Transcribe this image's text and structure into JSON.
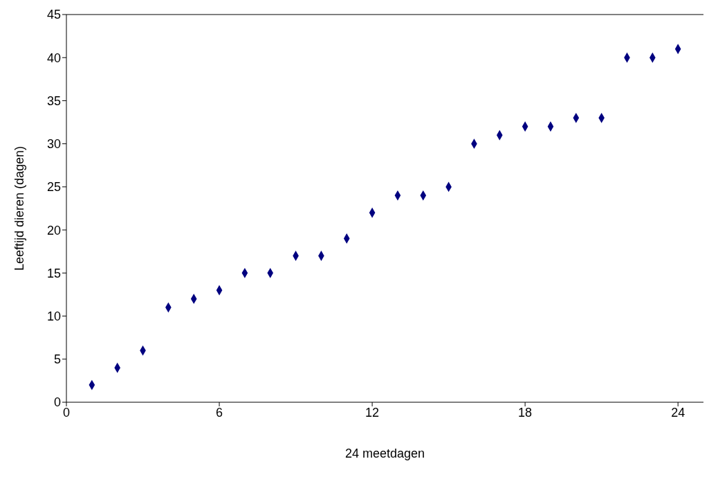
{
  "chart_data": {
    "type": "scatter",
    "xlabel": "24 meetdagen",
    "ylabel": "Leeftijd dieren (dagen)",
    "x": [
      1,
      2,
      3,
      4,
      5,
      6,
      7,
      8,
      9,
      10,
      11,
      12,
      13,
      14,
      15,
      16,
      17,
      18,
      19,
      20,
      21,
      22,
      23,
      24
    ],
    "values": [
      2,
      4,
      6,
      11,
      12,
      13,
      15,
      15,
      17,
      17,
      19,
      22,
      24,
      24,
      25,
      30,
      31,
      32,
      32,
      33,
      33,
      40,
      40,
      41
    ],
    "color": "#000080",
    "marker": "diamond",
    "xlim": [
      0,
      25
    ],
    "xticks": [
      0,
      6,
      12,
      18,
      24
    ],
    "ylim": [
      0,
      45
    ],
    "yticks": [
      0,
      5,
      10,
      15,
      20,
      25,
      30,
      35,
      40,
      45
    ],
    "grid": false,
    "legend": false
  }
}
